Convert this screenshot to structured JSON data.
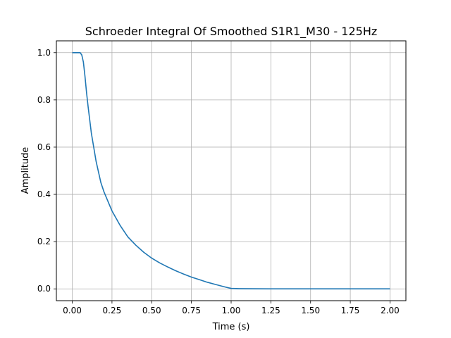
{
  "chart_data": {
    "type": "line",
    "title": "Schroeder Integral Of Smoothed S1R1_M30 - 125Hz",
    "xlabel": "Time (s)",
    "ylabel": "Amplitude",
    "xlim": [
      -0.1,
      2.1
    ],
    "ylim": [
      -0.05,
      1.05
    ],
    "grid": true,
    "x_ticks": [
      0.0,
      0.25,
      0.5,
      0.75,
      1.0,
      1.25,
      1.5,
      1.75,
      2.0
    ],
    "x_tick_labels": [
      "0.00",
      "0.25",
      "0.50",
      "0.75",
      "1.00",
      "1.25",
      "1.50",
      "1.75",
      "2.00"
    ],
    "y_ticks": [
      0.0,
      0.2,
      0.4,
      0.6,
      0.8,
      1.0
    ],
    "y_tick_labels": [
      "0.0",
      "0.2",
      "0.4",
      "0.6",
      "0.8",
      "1.0"
    ],
    "colors": {
      "line": "#1f77b4",
      "grid": "#b0b0b0"
    },
    "series": [
      {
        "x": [
          0.0,
          0.03,
          0.05,
          0.06,
          0.07,
          0.08,
          0.09,
          0.1,
          0.12,
          0.15,
          0.18,
          0.2,
          0.25,
          0.3,
          0.35,
          0.4,
          0.45,
          0.5,
          0.55,
          0.6,
          0.65,
          0.7,
          0.75,
          0.8,
          0.85,
          0.9,
          0.95,
          0.98,
          1.0,
          1.05,
          1.25,
          1.5,
          1.75,
          2.0
        ],
        "y": [
          1.0,
          1.0,
          1.0,
          0.99,
          0.96,
          0.9,
          0.83,
          0.77,
          0.66,
          0.54,
          0.45,
          0.41,
          0.33,
          0.27,
          0.22,
          0.185,
          0.155,
          0.13,
          0.11,
          0.093,
          0.077,
          0.063,
          0.05,
          0.039,
          0.028,
          0.019,
          0.01,
          0.005,
          0.002,
          0.001,
          0.0,
          0.0,
          0.0,
          0.0
        ]
      }
    ]
  }
}
